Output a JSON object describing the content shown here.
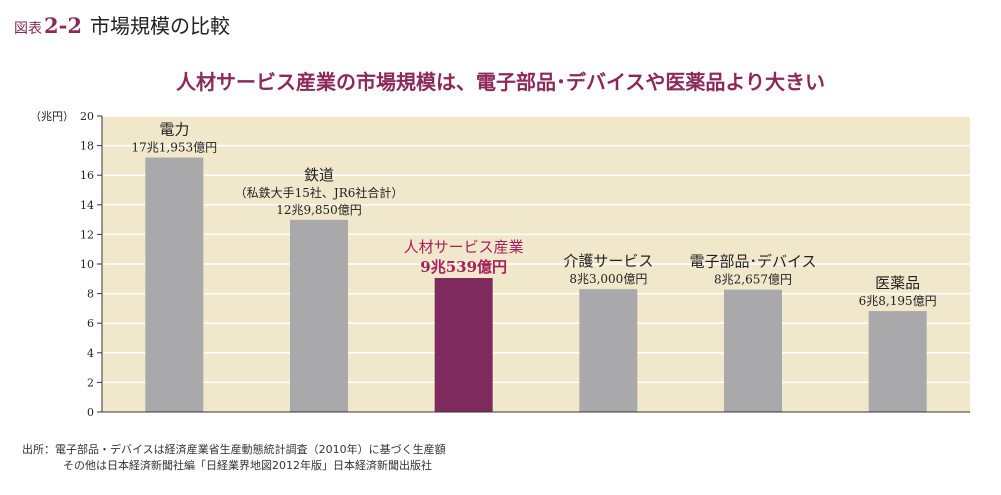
{
  "figure": {
    "label": "図表",
    "number": "2-2",
    "title": "市場規模の比較"
  },
  "chart_data": {
    "type": "bar",
    "title": "人材サービス産業の市場規模は、電子部品･デバイスや医薬品より大きい",
    "ylabel": "（兆円）",
    "ylim": [
      0,
      20
    ],
    "yticks": [
      0,
      2,
      4,
      6,
      8,
      10,
      12,
      14,
      16,
      18,
      20
    ],
    "grid": true,
    "categories": [
      "電力",
      "鉄道",
      "人材サービス産業",
      "介護サービス",
      "電子部品･デバイス",
      "医薬品"
    ],
    "category_notes": [
      "",
      "（私鉄大手15社、JR6社合計）",
      "",
      "",
      "",
      ""
    ],
    "value_labels": [
      "17兆1,953億円",
      "12兆9,850億円",
      "9兆539億円",
      "8兆3,000億円",
      "8兆2,657億円",
      "6兆8,195億円"
    ],
    "values": [
      17.1953,
      12.985,
      9.0539,
      8.3,
      8.2657,
      6.8195
    ],
    "colors": {
      "default_bar": "#a9a9ab",
      "highlight_bar": "#7e2a5c",
      "plot_background": "#f1e8cc",
      "grid": "#ffffff",
      "highlight_text": "#a6215c"
    },
    "highlight_index": 2
  },
  "source": {
    "line1": "出所：電子部品・デバイスは経済産業省生産動態統計調査（2010年）に基づく生産額",
    "line2": "その他は日本経済新聞社編「日経業界地図2012年版」日本経済新聞出版社"
  }
}
